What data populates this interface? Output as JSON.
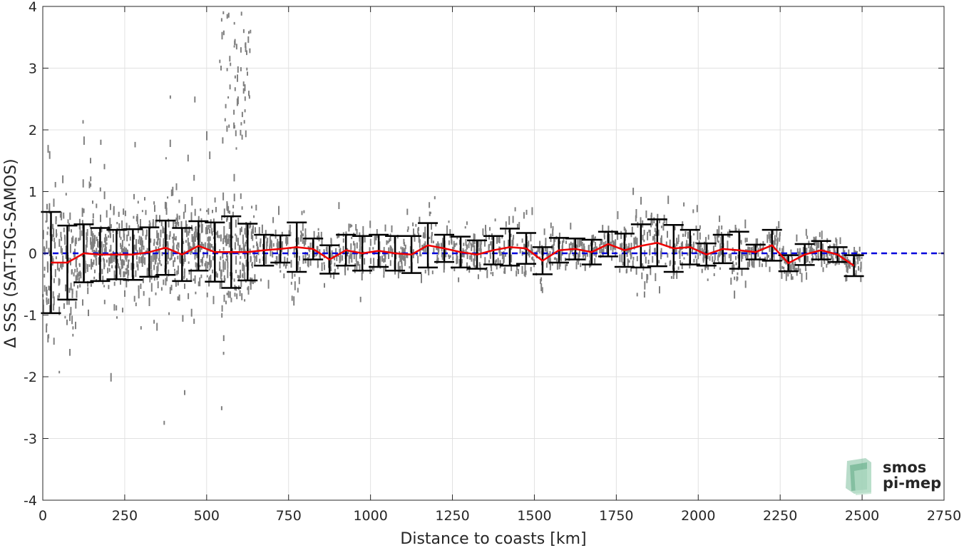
{
  "chart_data": {
    "type": "scatter",
    "title": "",
    "xlabel": "Distance to coasts [km]",
    "ylabel": "Δ SSS (SAT-TSG-SAMOS)",
    "xlim": [
      0,
      2750
    ],
    "ylim": [
      -4,
      4
    ],
    "xticks": [
      0,
      250,
      500,
      750,
      1000,
      1250,
      1500,
      1750,
      2000,
      2250,
      2500,
      2750
    ],
    "yticks": [
      -4,
      -3,
      -2,
      -1,
      0,
      1,
      2,
      3,
      4
    ],
    "grid": true,
    "reference_line": {
      "y": 0,
      "color": "#0000dd",
      "style": "dashed"
    },
    "scatter_color": "#808080",
    "mean_line_color": "#ee0000",
    "errorbar_color": "#000000",
    "bins": {
      "x": [
        25,
        75,
        125,
        175,
        225,
        275,
        325,
        375,
        425,
        475,
        525,
        575,
        625,
        675,
        725,
        775,
        825,
        875,
        925,
        975,
        1025,
        1075,
        1125,
        1175,
        1225,
        1275,
        1325,
        1375,
        1425,
        1475,
        1525,
        1575,
        1625,
        1675,
        1725,
        1775,
        1825,
        1875,
        1925,
        1975,
        2025,
        2075,
        2125,
        2175,
        2225,
        2275,
        2325,
        2375,
        2425,
        2475
      ],
      "mean": [
        -0.15,
        -0.15,
        0.0,
        -0.02,
        -0.02,
        -0.02,
        0.02,
        0.09,
        -0.02,
        0.12,
        0.02,
        0.02,
        0.02,
        0.05,
        0.07,
        0.1,
        0.07,
        -0.1,
        0.05,
        0.0,
        0.04,
        0.0,
        -0.02,
        0.13,
        0.08,
        0.02,
        -0.02,
        0.05,
        0.1,
        0.08,
        -0.12,
        0.05,
        0.07,
        0.02,
        0.15,
        0.05,
        0.12,
        0.17,
        0.08,
        0.1,
        -0.02,
        0.07,
        0.05,
        0.02,
        0.13,
        -0.16,
        -0.02,
        0.05,
        -0.02,
        -0.2
      ],
      "std": [
        0.82,
        0.6,
        0.47,
        0.43,
        0.4,
        0.41,
        0.4,
        0.44,
        0.43,
        0.4,
        0.48,
        0.58,
        0.46,
        0.25,
        0.22,
        0.4,
        0.17,
        0.23,
        0.25,
        0.28,
        0.26,
        0.28,
        0.3,
        0.36,
        0.22,
        0.25,
        0.23,
        0.23,
        0.3,
        0.25,
        0.22,
        0.2,
        0.17,
        0.2,
        0.2,
        0.27,
        0.35,
        0.38,
        0.38,
        0.28,
        0.18,
        0.23,
        0.3,
        0.12,
        0.25,
        0.13,
        0.17,
        0.15,
        0.12,
        0.17
      ]
    }
  },
  "logo": {
    "line1": "smos",
    "line2": "pi-mep",
    "color": "#7fbf9f"
  }
}
